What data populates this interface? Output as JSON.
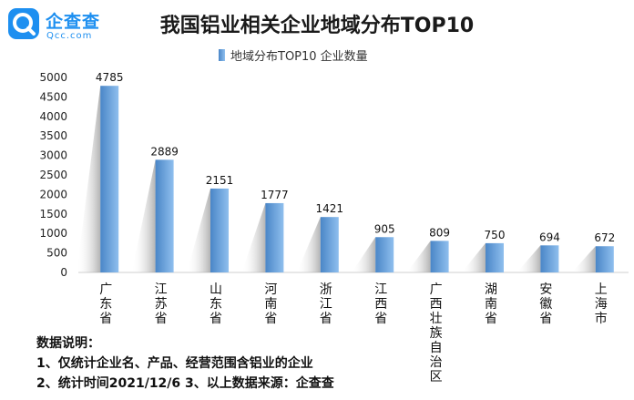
{
  "brand": {
    "name_cn": "企查查",
    "name_en": "Qcc.com"
  },
  "colors": {
    "brand": "#1d8ff0",
    "bar_dark": "#4a86c7",
    "bar_light": "#8fbfee"
  },
  "chart_data": {
    "type": "bar",
    "title": "我国铝业相关企业地域分布TOP10",
    "legend": "地域分布TOP10  企业数量",
    "categories": [
      "广东省",
      "江苏省",
      "山东省",
      "河南省",
      "浙江省",
      "江西省",
      "广西壮族自治区",
      "湖南省",
      "安徽省",
      "上海市"
    ],
    "series": [
      {
        "name": "地域分布TOP10  企业数量",
        "values": [
          4785,
          2889,
          2151,
          1777,
          1421,
          905,
          809,
          750,
          694,
          672
        ]
      }
    ],
    "ylim": [
      0,
      5000
    ],
    "yticks": [
      0,
      500,
      1000,
      1500,
      2000,
      2500,
      3000,
      3500,
      4000,
      4500,
      5000
    ],
    "grid": false
  },
  "notes": {
    "heading": "数据说明：",
    "line1": "1、仅统计企业名、产品、经营范围含铝业的企业",
    "line2": "2、统计时间2021/12/6   3、以上数据来源：企查查"
  }
}
